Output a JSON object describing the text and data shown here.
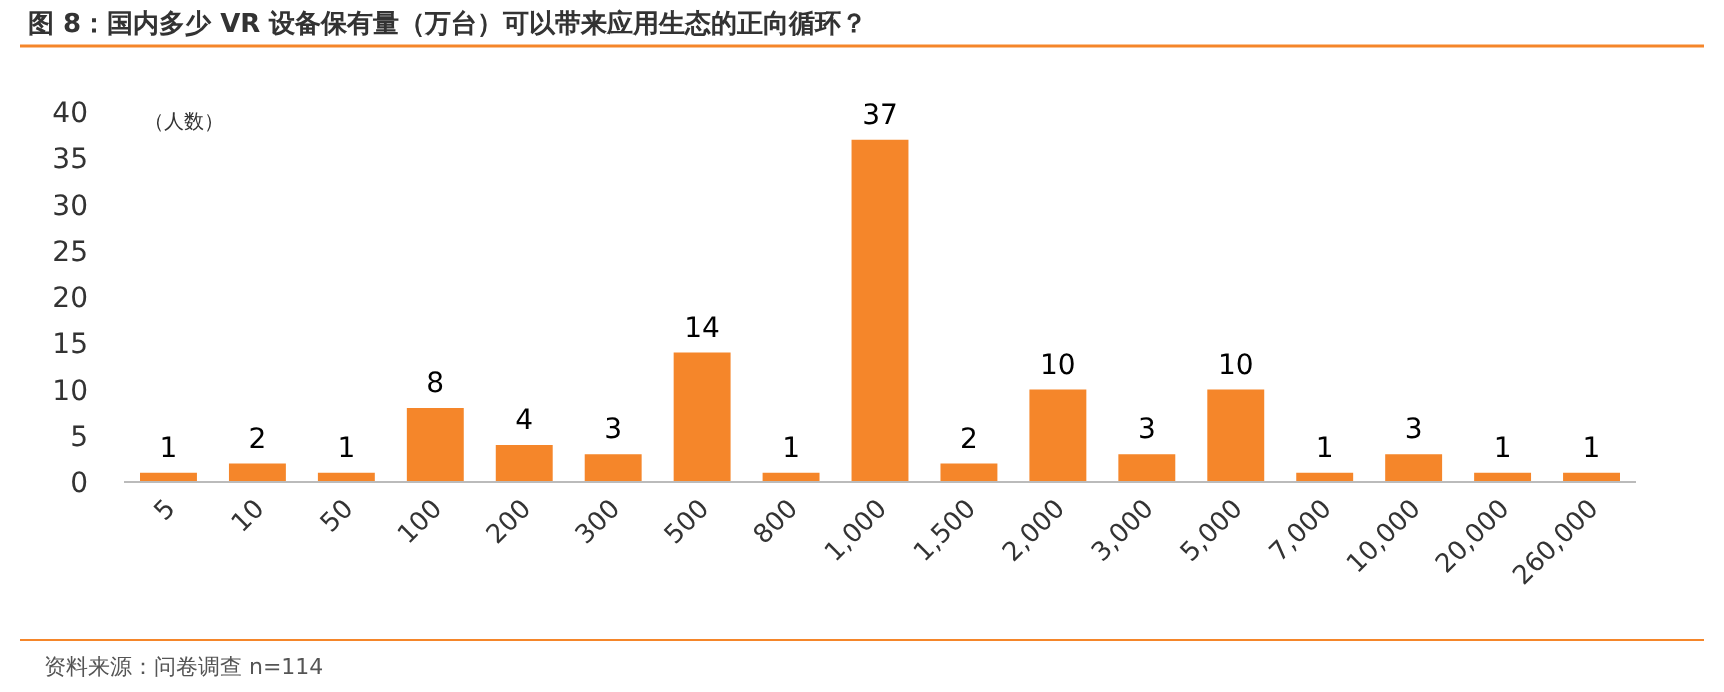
{
  "chart_data": {
    "type": "bar",
    "title": "图 8：国内多少 VR 设备保有量（万台）可以带来应用生态的正向循环？",
    "ylabel": "（人数）",
    "categories": [
      "5",
      "10",
      "50",
      "100",
      "200",
      "300",
      "500",
      "800",
      "1,000",
      "1,500",
      "2,000",
      "3,000",
      "5,000",
      "7,000",
      "10,000",
      "20,000",
      "260,000"
    ],
    "values": [
      1,
      2,
      1,
      8,
      4,
      3,
      14,
      1,
      37,
      2,
      10,
      3,
      10,
      1,
      3,
      1,
      1
    ],
    "color": "#f5862a",
    "ylim": [
      0,
      40
    ],
    "yticks": [
      0,
      5,
      10,
      15,
      20,
      25,
      30,
      35,
      40
    ],
    "data_labels": true,
    "grid": false,
    "annotations": [
      "资料来源：问卷调查 n=114"
    ]
  }
}
